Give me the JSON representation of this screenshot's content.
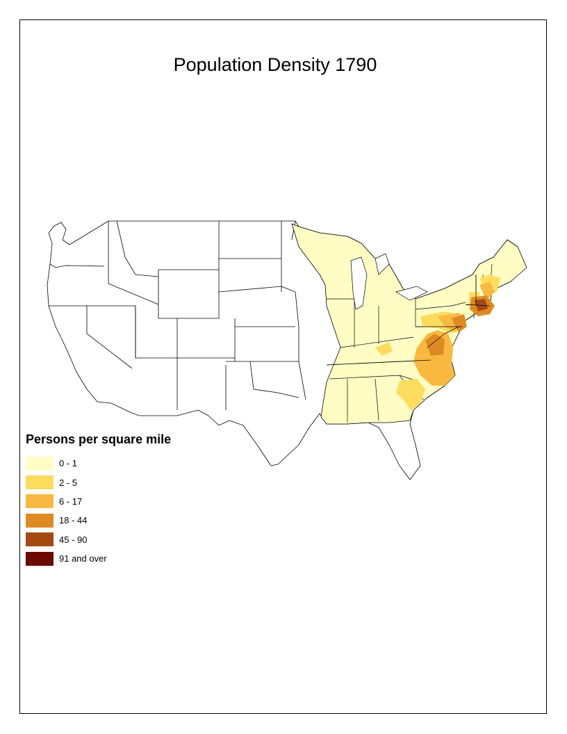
{
  "map": {
    "title": "Population Density 1790"
  },
  "legend": {
    "title": "Persons per square mile",
    "items": [
      {
        "label": "0 - 1",
        "color": "#FFFDC4"
      },
      {
        "label": "2 - 5",
        "color": "#FDDC5E"
      },
      {
        "label": "6 - 17",
        "color": "#F9B941"
      },
      {
        "label": "18 - 44",
        "color": "#DE8A24"
      },
      {
        "label": "45 - 90",
        "color": "#A64A13"
      },
      {
        "label": "91 and over",
        "color": "#6B0A04"
      }
    ]
  },
  "colors": {
    "unsettled": "#FFFFFF",
    "outline": "#000000"
  }
}
